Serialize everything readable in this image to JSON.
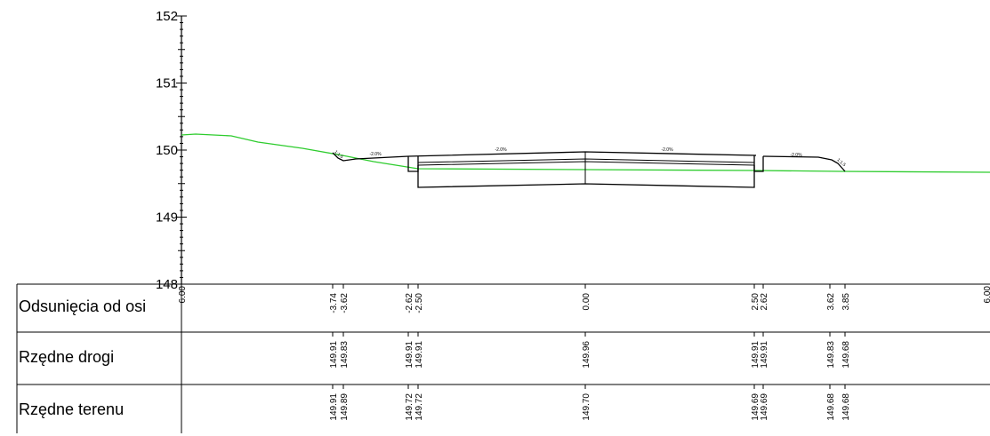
{
  "y_axis": {
    "min": 148,
    "max": 152,
    "tick_labels": [
      "152",
      "151",
      "150",
      "149",
      "148"
    ]
  },
  "table": {
    "rows": [
      {
        "label": "Odsunięcia od osi"
      },
      {
        "label": "Rzędne drogi"
      },
      {
        "label": "Rzędne terenu"
      }
    ],
    "edge_labels": [
      "6.00",
      "6.00"
    ],
    "stations": [
      {
        "offset": "-3.74",
        "road": "149.91",
        "terrain": "149.91"
      },
      {
        "offset": "-3.62",
        "road": "149.83",
        "terrain": "149.89"
      },
      {
        "offset": "-2.62",
        "road": "149.91",
        "terrain": "149.72"
      },
      {
        "offset": "-2.50",
        "road": "149.91",
        "terrain": "149.72"
      },
      {
        "offset": "0.00",
        "road": "149.96",
        "terrain": "149.70"
      },
      {
        "offset": "2.50",
        "road": "149.91",
        "terrain": "149.69"
      },
      {
        "offset": "2.62",
        "road": "149.91",
        "terrain": "149.69"
      },
      {
        "offset": "3.62",
        "road": "149.83",
        "terrain": "149.68"
      },
      {
        "offset": "3.85",
        "road": "149.68",
        "terrain": "149.68"
      }
    ]
  },
  "slope_labels": [
    "-2.0%",
    "-2.0%",
    "-2.0%",
    "-2.0%",
    "1:1.5",
    "1:1.5"
  ],
  "colors": {
    "terrain_line": "#2ecc2e",
    "road_line": "#000000"
  }
}
